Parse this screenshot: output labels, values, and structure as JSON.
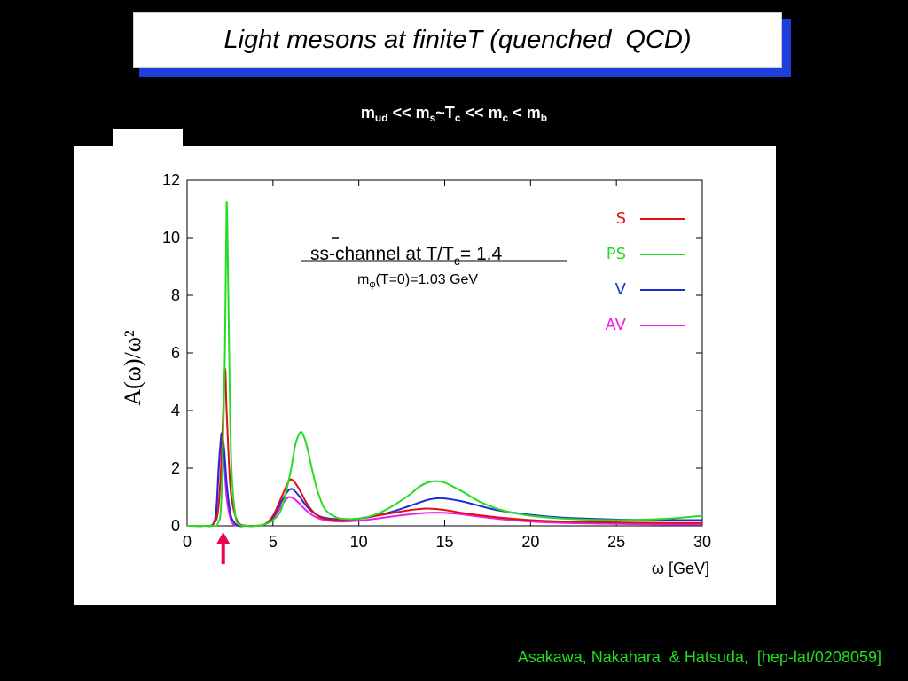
{
  "slide": {
    "title": "Light mesons at finiteT (quenched  QCD)",
    "subtitle": {
      "m1": "m",
      "s1": "ud",
      "t1": " << m",
      "s2": "s",
      "t2": "~T",
      "s3": "c",
      "t3": " << m",
      "s4": "c",
      "t4": " < m",
      "s5": "b"
    },
    "footer": "Asakawa, Nakahara  & Hatsuda,  [hep-lat/0208059]",
    "arrow_color": "#e8005a"
  },
  "chart_data": {
    "type": "line",
    "xlabel": "ω [GeV]",
    "ylabel": "A(ω)/ω²",
    "xlim": [
      0,
      30
    ],
    "ylim": [
      0,
      12
    ],
    "xticks": [
      0,
      5,
      10,
      15,
      20,
      25,
      30
    ],
    "yticks": [
      0,
      2,
      4,
      6,
      8,
      10,
      12
    ],
    "annotation": {
      "channel_prefix": "ss",
      "channel_mid": "-channel at T/T",
      "channel_sub": "c",
      "channel_suffix": "= 1.4",
      "mass_prefix": "m",
      "mass_sub": "φ",
      "mass_suffix": "(T=0)=1.03 GeV"
    },
    "arrow_x": 2.0,
    "series": [
      {
        "name": "S",
        "color": "#e01010",
        "x": [
          0,
          1,
          1.5,
          1.8,
          2.0,
          2.2,
          2.3,
          2.5,
          2.7,
          3.0,
          3.5,
          4.0,
          4.5,
          5.0,
          5.5,
          5.8,
          6.0,
          6.2,
          6.5,
          7.0,
          7.5,
          8,
          9,
          10,
          11,
          12,
          13,
          13.5,
          14,
          15,
          16,
          17,
          18,
          20,
          22,
          25,
          28,
          30
        ],
        "y": [
          0,
          0,
          0.05,
          0.5,
          2.3,
          5.4,
          4.0,
          1.5,
          0.6,
          0.1,
          0,
          0,
          0.05,
          0.35,
          1.0,
          1.4,
          1.6,
          1.55,
          1.3,
          0.75,
          0.4,
          0.25,
          0.2,
          0.25,
          0.35,
          0.45,
          0.55,
          0.58,
          0.6,
          0.55,
          0.45,
          0.37,
          0.3,
          0.2,
          0.15,
          0.12,
          0.1,
          0.1
        ]
      },
      {
        "name": "PS",
        "color": "#22dd22",
        "x": [
          0,
          1,
          1.5,
          1.8,
          2.0,
          2.2,
          2.3,
          2.4,
          2.5,
          2.6,
          2.8,
          3.0,
          3.5,
          4.0,
          4.5,
          5.0,
          5.5,
          6.0,
          6.3,
          6.6,
          6.8,
          7.0,
          7.3,
          7.6,
          8.0,
          8.5,
          9,
          10,
          11,
          12,
          13,
          13.5,
          14,
          14.5,
          15,
          16,
          17,
          18,
          19,
          20,
          22,
          25,
          28,
          30
        ],
        "y": [
          0,
          0,
          0,
          0.1,
          1.0,
          6.0,
          11.2,
          8.0,
          4.0,
          1.8,
          0.4,
          0.05,
          0,
          0,
          0.05,
          0.2,
          0.6,
          1.8,
          2.8,
          3.25,
          3.1,
          2.7,
          1.9,
          1.2,
          0.6,
          0.35,
          0.25,
          0.25,
          0.4,
          0.7,
          1.1,
          1.35,
          1.5,
          1.55,
          1.5,
          1.2,
          0.85,
          0.6,
          0.45,
          0.35,
          0.25,
          0.2,
          0.25,
          0.35
        ]
      },
      {
        "name": "V",
        "color": "#1a2fd0",
        "x": [
          0,
          1,
          1.5,
          1.7,
          1.85,
          2.0,
          2.15,
          2.3,
          2.5,
          2.7,
          3.0,
          3.5,
          4.0,
          4.5,
          5.0,
          5.5,
          5.8,
          6.0,
          6.2,
          6.5,
          7.0,
          7.5,
          8,
          9,
          10,
          11,
          12,
          13,
          14,
          14.5,
          15,
          16,
          17,
          18,
          20,
          22,
          25,
          28,
          30
        ],
        "y": [
          0,
          0,
          0.05,
          0.5,
          2.0,
          3.2,
          2.7,
          1.5,
          0.5,
          0.15,
          0,
          0,
          0,
          0.05,
          0.3,
          0.85,
          1.15,
          1.27,
          1.25,
          1.05,
          0.65,
          0.4,
          0.28,
          0.22,
          0.25,
          0.35,
          0.5,
          0.7,
          0.9,
          0.95,
          0.95,
          0.85,
          0.7,
          0.55,
          0.38,
          0.28,
          0.22,
          0.2,
          0.2
        ]
      },
      {
        "name": "AV",
        "color": "#e820e8",
        "x": [
          0,
          1,
          1.5,
          1.7,
          1.85,
          2.0,
          2.15,
          2.3,
          2.5,
          2.7,
          3.0,
          3.5,
          4.0,
          4.5,
          5.0,
          5.5,
          5.8,
          6.0,
          6.2,
          6.5,
          7.0,
          7.5,
          8,
          9,
          10,
          11,
          12,
          13,
          14,
          15,
          16,
          17,
          18,
          20,
          22,
          25,
          28,
          30
        ],
        "y": [
          0,
          0,
          0.05,
          0.6,
          2.2,
          2.9,
          2.2,
          1.0,
          0.3,
          0.05,
          0,
          0,
          0,
          0.05,
          0.25,
          0.7,
          0.95,
          1.0,
          0.95,
          0.8,
          0.5,
          0.3,
          0.2,
          0.15,
          0.18,
          0.25,
          0.33,
          0.4,
          0.45,
          0.45,
          0.4,
          0.32,
          0.25,
          0.15,
          0.1,
          0.07,
          0.05,
          0.05
        ]
      }
    ]
  }
}
